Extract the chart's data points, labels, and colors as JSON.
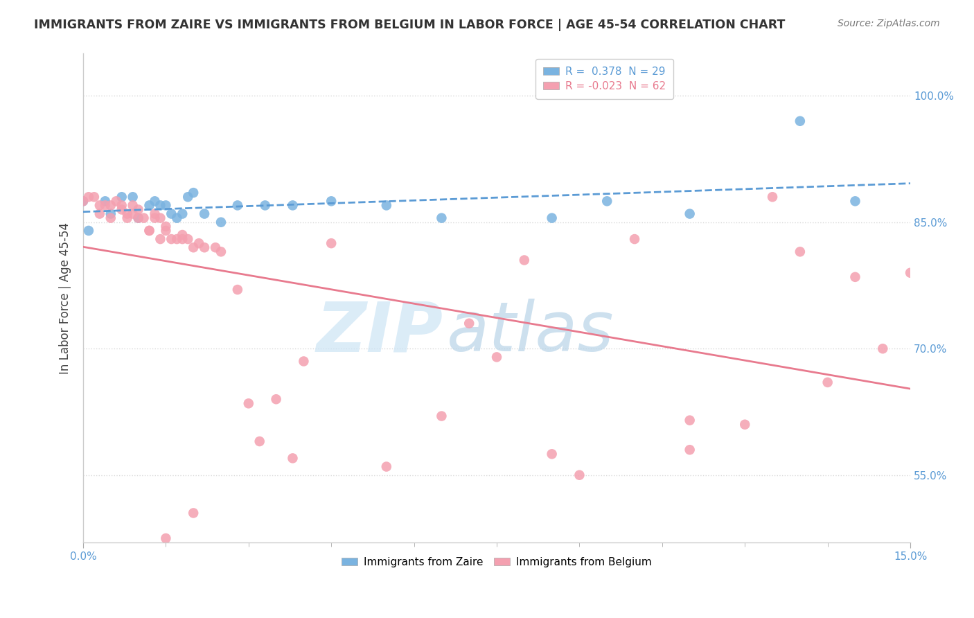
{
  "title": "IMMIGRANTS FROM ZAIRE VS IMMIGRANTS FROM BELGIUM IN LABOR FORCE | AGE 45-54 CORRELATION CHART",
  "source_text": "Source: ZipAtlas.com",
  "ylabel": "In Labor Force | Age 45-54",
  "xlim": [
    0.0,
    0.15
  ],
  "ylim": [
    0.47,
    1.05
  ],
  "yticks": [
    0.55,
    0.7,
    0.85,
    1.0
  ],
  "ytick_labels": [
    "55.0%",
    "70.0%",
    "85.0%",
    "100.0%"
  ],
  "xtick_labels": [
    "0.0%",
    "15.0%"
  ],
  "xticks": [
    0.0,
    0.15
  ],
  "legend_r_zaire": "0.378",
  "legend_n_zaire": "29",
  "legend_r_belgium": "-0.023",
  "legend_n_belgium": "62",
  "zaire_color": "#7ab3e0",
  "belgium_color": "#f4a0b0",
  "zaire_line_color": "#5b9bd5",
  "belgium_line_color": "#e87a8e",
  "axis_text_color": "#5b9bd5",
  "title_color": "#333333",
  "grid_color": "#d8d8d8",
  "background_color": "#ffffff",
  "watermark_color": "#cce4f5",
  "zaire_x": [
    0.0,
    0.001,
    0.004,
    0.005,
    0.007,
    0.009,
    0.01,
    0.012,
    0.013,
    0.014,
    0.015,
    0.016,
    0.017,
    0.018,
    0.019,
    0.02,
    0.022,
    0.025,
    0.028,
    0.033,
    0.038,
    0.045,
    0.055,
    0.065,
    0.085,
    0.095,
    0.11,
    0.13,
    0.14
  ],
  "zaire_y": [
    0.875,
    0.84,
    0.875,
    0.86,
    0.88,
    0.88,
    0.855,
    0.87,
    0.875,
    0.87,
    0.87,
    0.86,
    0.855,
    0.86,
    0.88,
    0.885,
    0.86,
    0.85,
    0.87,
    0.87,
    0.87,
    0.875,
    0.87,
    0.855,
    0.855,
    0.875,
    0.86,
    0.97,
    0.875
  ],
  "belgium_x": [
    0.0,
    0.001,
    0.002,
    0.003,
    0.003,
    0.004,
    0.005,
    0.005,
    0.006,
    0.007,
    0.007,
    0.008,
    0.008,
    0.009,
    0.009,
    0.01,
    0.01,
    0.011,
    0.012,
    0.012,
    0.013,
    0.013,
    0.014,
    0.014,
    0.015,
    0.015,
    0.016,
    0.017,
    0.018,
    0.018,
    0.019,
    0.02,
    0.021,
    0.022,
    0.024,
    0.025,
    0.028,
    0.03,
    0.032,
    0.035,
    0.038,
    0.04,
    0.045,
    0.055,
    0.065,
    0.07,
    0.075,
    0.085,
    0.09,
    0.1,
    0.11,
    0.12,
    0.125,
    0.13,
    0.135,
    0.14,
    0.145,
    0.15,
    0.015,
    0.02,
    0.08,
    0.11
  ],
  "belgium_y": [
    0.875,
    0.88,
    0.88,
    0.87,
    0.86,
    0.87,
    0.87,
    0.855,
    0.875,
    0.865,
    0.87,
    0.855,
    0.86,
    0.86,
    0.87,
    0.855,
    0.865,
    0.855,
    0.84,
    0.84,
    0.86,
    0.855,
    0.855,
    0.83,
    0.84,
    0.845,
    0.83,
    0.83,
    0.835,
    0.83,
    0.83,
    0.82,
    0.825,
    0.82,
    0.82,
    0.815,
    0.77,
    0.635,
    0.59,
    0.64,
    0.57,
    0.685,
    0.825,
    0.56,
    0.62,
    0.73,
    0.69,
    0.575,
    0.55,
    0.83,
    0.615,
    0.61,
    0.88,
    0.815,
    0.66,
    0.785,
    0.7,
    0.79,
    0.475,
    0.505,
    0.805,
    0.58
  ]
}
